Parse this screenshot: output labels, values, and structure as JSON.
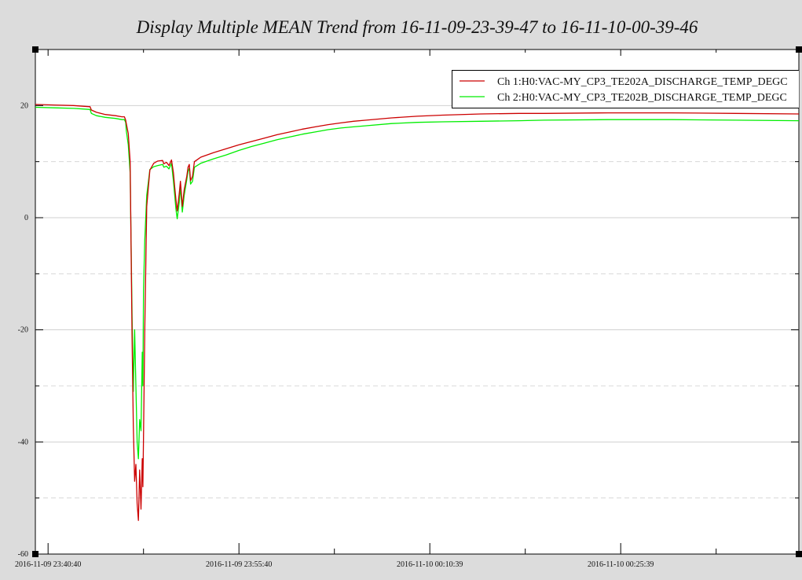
{
  "window": {
    "background": "#dcdcdc"
  },
  "chart_data": {
    "type": "line",
    "title": "Display Multiple MEAN Trend from 16-11-09-23-39-47 to 16-11-10-00-39-46",
    "xlabel": "",
    "ylabel": "",
    "x_unit": "minutes",
    "xlim": [
      0,
      60
    ],
    "ylim": [
      -60,
      30
    ],
    "grid": true,
    "legend_position": "top-right",
    "y_ticks": [
      {
        "value": 20,
        "label": "20"
      },
      {
        "value": 0,
        "label": "0"
      },
      {
        "value": -20,
        "label": "-20"
      },
      {
        "value": -40,
        "label": "-40"
      },
      {
        "value": -60,
        "label": "-60"
      }
    ],
    "y_minor_ticks": [
      10,
      -10,
      -30,
      -50
    ],
    "x_ticks": [
      {
        "value": 1,
        "label": "2016-11-09 23:40:40"
      },
      {
        "value": 16,
        "label": "2016-11-09 23:55:40"
      },
      {
        "value": 31,
        "label": "2016-11-10 00:10:39"
      },
      {
        "value": 46,
        "label": "2016-11-10 00:25:39"
      }
    ],
    "x_minor_ticks": [
      8.5,
      23.5,
      38.5,
      53.5
    ],
    "series": [
      {
        "name": "Ch 1:H0:VAC-MY_CP3_TE202A_DISCHARGE_TEMP_DEGC",
        "color": "#cc0000",
        "x": [
          0,
          1.5,
          3,
          4.3,
          4.4,
          4.8,
          5.5,
          6.3,
          6.8,
          7.0,
          7.1,
          7.15,
          7.3,
          7.45,
          7.6,
          7.7,
          7.8,
          7.9,
          8.0,
          8.1,
          8.2,
          8.3,
          8.4,
          8.45,
          8.5,
          8.6,
          8.75,
          9.0,
          9.3,
          9.6,
          10.0,
          10.1,
          10.3,
          10.5,
          10.7,
          10.85,
          10.95,
          11.05,
          11.15,
          11.3,
          11.4,
          11.55,
          11.7,
          11.9,
          12.0,
          12.1,
          12.2,
          12.35,
          12.5,
          13.0,
          14.0,
          15.0,
          16.0,
          17.0,
          18.0,
          19.0,
          20.0,
          21.0,
          22.0,
          23.0,
          24.0,
          25.0,
          26.0,
          28.0,
          30.0,
          32.0,
          35.0,
          38.0,
          40.0,
          45.0,
          50.0,
          55.0,
          60.0
        ],
        "values": [
          20.2,
          20.1,
          20.0,
          19.8,
          19.2,
          18.8,
          18.4,
          18.2,
          18.0,
          18.0,
          17.4,
          16.8,
          15.0,
          10.0,
          -21.0,
          -37.0,
          -47.0,
          -44.0,
          -51.0,
          -54.0,
          -45.0,
          -52.0,
          -43.0,
          -48.0,
          -39.0,
          -20.0,
          2.0,
          8.5,
          9.7,
          10.1,
          10.2,
          9.6,
          9.9,
          9.3,
          10.3,
          8.0,
          5.5,
          3.2,
          1.2,
          4.2,
          6.5,
          2.0,
          5.0,
          7.4,
          9.0,
          9.5,
          6.6,
          7.4,
          10.0,
          10.8,
          11.6,
          12.3,
          13.0,
          13.6,
          14.2,
          14.8,
          15.3,
          15.8,
          16.2,
          16.6,
          16.9,
          17.2,
          17.4,
          17.8,
          18.1,
          18.3,
          18.5,
          18.6,
          18.6,
          18.7,
          18.7,
          18.6,
          18.5
        ]
      },
      {
        "name": "Ch 2:H0:VAC-MY_CP3_TE202B_DISCHARGE_TEMP_DEGC",
        "color": "#00ee00",
        "x": [
          0,
          1.5,
          3,
          4.3,
          4.4,
          4.8,
          5.5,
          6.3,
          6.8,
          7.0,
          7.1,
          7.15,
          7.3,
          7.45,
          7.6,
          7.7,
          7.8,
          7.9,
          8.0,
          8.1,
          8.2,
          8.3,
          8.4,
          8.45,
          8.5,
          8.6,
          8.75,
          9.0,
          9.3,
          9.6,
          10.0,
          10.1,
          10.3,
          10.5,
          10.7,
          10.85,
          10.95,
          11.05,
          11.15,
          11.3,
          11.4,
          11.55,
          11.7,
          11.9,
          12.0,
          12.1,
          12.2,
          12.35,
          12.5,
          13.0,
          14.0,
          15.0,
          16.0,
          17.0,
          18.0,
          19.0,
          20.0,
          21.0,
          22.0,
          23.0,
          24.0,
          25.0,
          26.0,
          28.0,
          30.0,
          32.0,
          35.0,
          38.0,
          40.0,
          45.0,
          50.0,
          55.0,
          60.0
        ],
        "values": [
          19.7,
          19.6,
          19.5,
          19.3,
          18.6,
          18.2,
          17.9,
          17.7,
          17.5,
          17.5,
          17.0,
          15.5,
          13.0,
          8.0,
          -17.0,
          -31.0,
          -20.0,
          -30.0,
          -40.0,
          -43.0,
          -36.0,
          -38.0,
          -24.0,
          -30.0,
          -13.0,
          -4.0,
          4.0,
          8.6,
          9.1,
          9.3,
          9.5,
          9.0,
          9.2,
          8.7,
          9.7,
          6.5,
          4.0,
          1.5,
          -0.2,
          2.6,
          5.5,
          1.0,
          4.0,
          6.8,
          8.3,
          8.8,
          6.0,
          6.5,
          9.0,
          9.7,
          10.5,
          11.2,
          12.0,
          12.7,
          13.3,
          13.9,
          14.4,
          14.9,
          15.3,
          15.7,
          16.0,
          16.2,
          16.4,
          16.8,
          17.0,
          17.1,
          17.2,
          17.3,
          17.4,
          17.5,
          17.5,
          17.4,
          17.3
        ]
      }
    ]
  }
}
